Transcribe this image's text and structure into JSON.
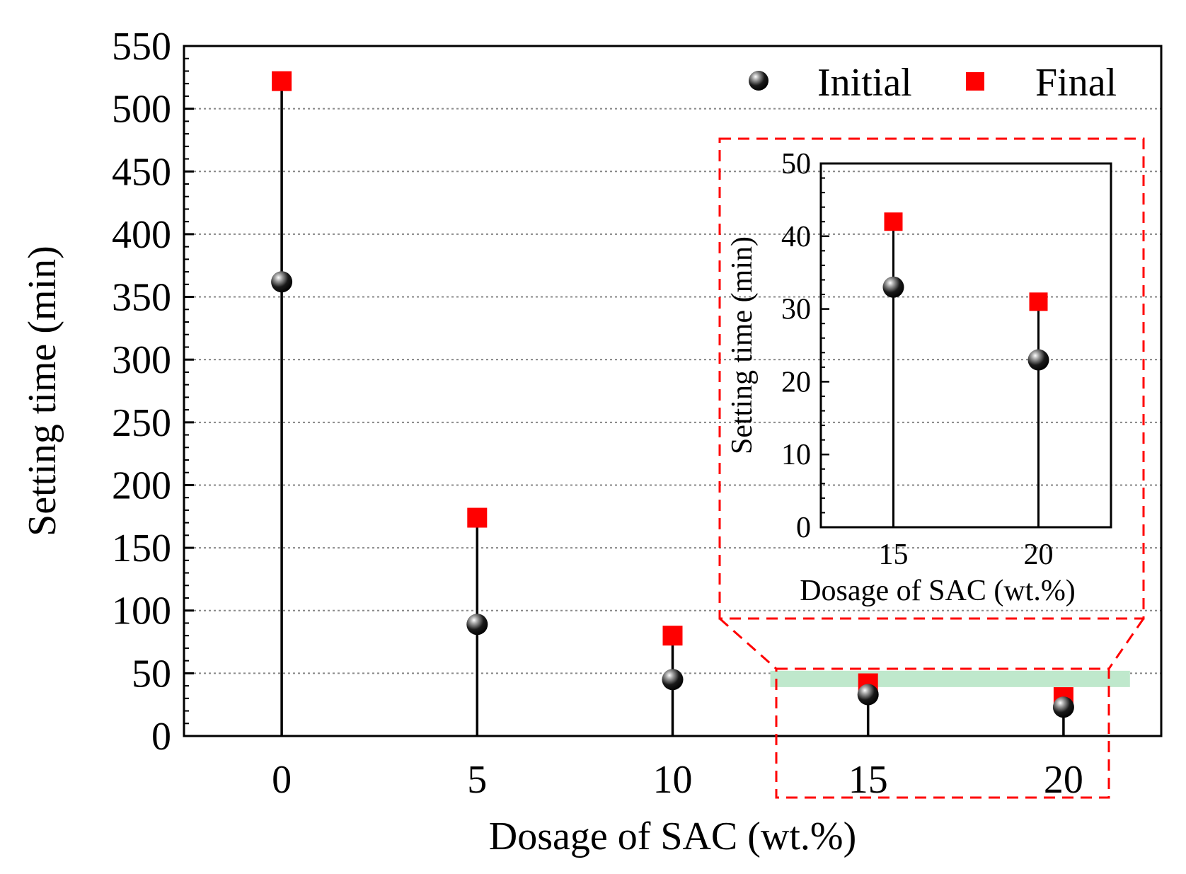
{
  "chart_data": [
    {
      "type": "scatter",
      "title": "",
      "xlabel": "Dosage of SAC (wt.%)",
      "ylabel": "Setting time (min)",
      "xlim": [
        -2.5,
        22.5
      ],
      "ylim": [
        0,
        550
      ],
      "x_ticks": [
        0,
        5,
        10,
        15,
        20
      ],
      "y_ticks": [
        0,
        50,
        100,
        150,
        200,
        250,
        300,
        350,
        400,
        450,
        500,
        550
      ],
      "grid": "horizontal dotted",
      "legend_position": "top-right",
      "series": [
        {
          "name": "Initial",
          "marker": "sphere",
          "color": "#000000",
          "x": [
            0,
            5,
            10,
            15,
            20
          ],
          "values": [
            362,
            89,
            45,
            33,
            23
          ]
        },
        {
          "name": "Final",
          "marker": "square",
          "color": "#ff0000",
          "x": [
            0,
            5,
            10,
            15,
            20
          ],
          "values": [
            522,
            174,
            80,
            42,
            31
          ]
        }
      ]
    },
    {
      "type": "scatter",
      "title": "",
      "xlabel": "Dosage of SAC (wt.%)",
      "ylabel": "Setting time (min)",
      "xlim": [
        12.5,
        22.5
      ],
      "ylim": [
        0,
        50
      ],
      "x_ticks": [
        15,
        20
      ],
      "y_ticks": [
        0,
        10,
        20,
        30,
        40,
        50
      ],
      "series": [
        {
          "name": "Initial",
          "x": [
            15,
            20
          ],
          "values": [
            33,
            23
          ]
        },
        {
          "name": "Final",
          "x": [
            15,
            20
          ],
          "values": [
            42,
            31
          ]
        }
      ]
    }
  ],
  "colors": {
    "initial": "#000000",
    "final": "#ff0000",
    "highlight": "#bfe8cc",
    "callout": "#ff0000"
  }
}
